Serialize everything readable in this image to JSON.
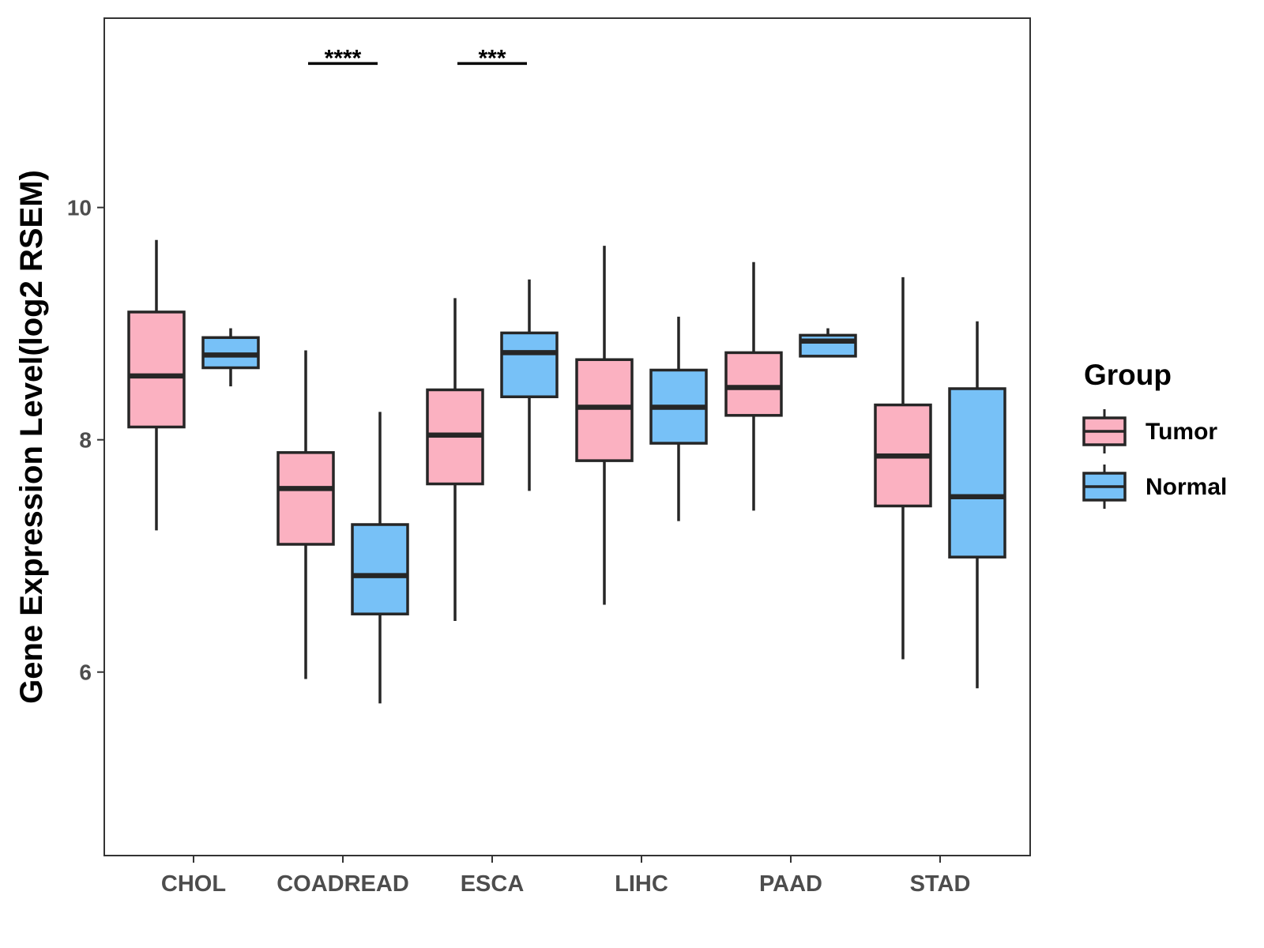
{
  "chart_data": {
    "type": "box",
    "title": "",
    "xlabel": "",
    "ylabel": "Gene Expression Level(log2 RSEM)",
    "ylim": [
      4.42,
      11.63
    ],
    "yticks": [
      6,
      8,
      10
    ],
    "grid": false,
    "legend": {
      "title": "Group",
      "position": "right",
      "entries": [
        "Tumor",
        "Normal"
      ]
    },
    "categories": [
      "CHOL",
      "COADREAD",
      "ESCA",
      "LIHC",
      "PAAD",
      "STAD"
    ],
    "series": [
      {
        "name": "Tumor",
        "color": "#FBB1C1",
        "boxes": [
          {
            "category": "CHOL",
            "min": 7.22,
            "q1": 8.11,
            "median": 8.55,
            "q3": 9.1,
            "max": 9.72
          },
          {
            "category": "COADREAD",
            "min": 5.94,
            "q1": 7.1,
            "median": 7.58,
            "q3": 7.89,
            "max": 8.77
          },
          {
            "category": "ESCA",
            "min": 6.44,
            "q1": 7.62,
            "median": 8.04,
            "q3": 8.43,
            "max": 9.22
          },
          {
            "category": "LIHC",
            "min": 6.58,
            "q1": 7.82,
            "median": 8.28,
            "q3": 8.69,
            "max": 9.67
          },
          {
            "category": "PAAD",
            "min": 7.39,
            "q1": 8.21,
            "median": 8.45,
            "q3": 8.75,
            "max": 9.53
          },
          {
            "category": "STAD",
            "min": 6.11,
            "q1": 7.43,
            "median": 7.86,
            "q3": 8.3,
            "max": 9.4
          }
        ]
      },
      {
        "name": "Normal",
        "color": "#77C1F7",
        "boxes": [
          {
            "category": "CHOL",
            "min": 8.46,
            "q1": 8.62,
            "median": 8.73,
            "q3": 8.88,
            "max": 8.96
          },
          {
            "category": "COADREAD",
            "min": 5.73,
            "q1": 6.5,
            "median": 6.83,
            "q3": 7.27,
            "max": 8.24
          },
          {
            "category": "ESCA",
            "min": 7.56,
            "q1": 8.37,
            "median": 8.75,
            "q3": 8.92,
            "max": 9.38
          },
          {
            "category": "LIHC",
            "min": 7.3,
            "q1": 7.97,
            "median": 8.28,
            "q3": 8.6,
            "max": 9.06
          },
          {
            "category": "PAAD",
            "min": 8.72,
            "q1": 8.72,
            "median": 8.85,
            "q3": 8.9,
            "max": 8.96
          },
          {
            "category": "STAD",
            "min": 5.86,
            "q1": 6.99,
            "median": 7.51,
            "q3": 8.44,
            "max": 9.02
          }
        ]
      }
    ],
    "annotations": [
      {
        "category": "COADREAD",
        "label": "****",
        "y": 11.24
      },
      {
        "category": "ESCA",
        "label": "***",
        "y": 11.24
      }
    ]
  }
}
